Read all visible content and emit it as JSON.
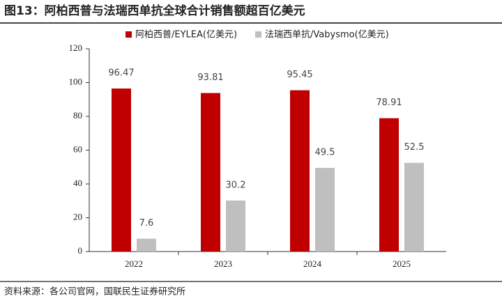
{
  "chart_data": {
    "type": "bar",
    "title": "图13：阿柏西普与法瑞西单抗全球合计销售额超百亿美元",
    "source": "资料来源：各公司官网，国联民生证券研究所",
    "categories": [
      "2022",
      "2023",
      "2024",
      "2025"
    ],
    "series": [
      {
        "name": "阿柏西普/EYLEA(亿美元)",
        "color": "#c00000",
        "values": [
          96.47,
          93.81,
          95.45,
          78.91
        ]
      },
      {
        "name": "法瑞西单抗/Vabysmo(亿美元)",
        "color": "#bfbfbf",
        "values": [
          7.6,
          30.2,
          49.5,
          52.5
        ]
      }
    ],
    "ylim": [
      0,
      120
    ],
    "yticks": [
      0,
      20,
      40,
      60,
      80,
      100,
      120
    ],
    "legend": "top"
  }
}
